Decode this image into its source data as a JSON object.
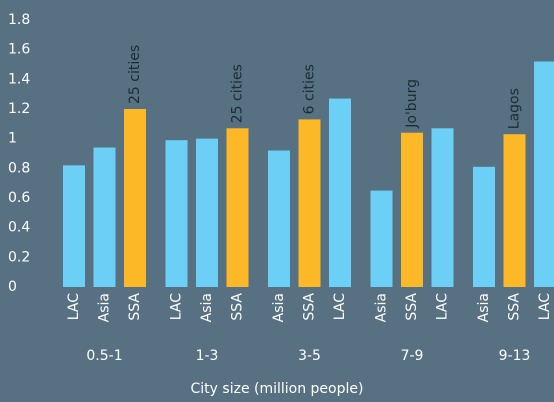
{
  "chart_data": {
    "type": "grouped-bar",
    "x_label": "City size (million people)",
    "ylim": [
      0,
      1.8
    ],
    "yticks": [
      0,
      0.2,
      0.4,
      0.6,
      0.8,
      1,
      1.2,
      1.4,
      1.6,
      1.8
    ],
    "groups": [
      {
        "name": "0.5-1",
        "bars": [
          {
            "name": "LAC",
            "value": 0.82,
            "color": "#6ccff6"
          },
          {
            "name": "Asia",
            "value": 0.94,
            "color": "#6ccff6"
          },
          {
            "name": "SSA",
            "value": 1.2,
            "color": "#fdb827",
            "annotation": "25 cities"
          }
        ]
      },
      {
        "name": "1-3",
        "bars": [
          {
            "name": "LAC",
            "value": 0.99,
            "color": "#6ccff6"
          },
          {
            "name": "Asia",
            "value": 1.0,
            "color": "#6ccff6"
          },
          {
            "name": "SSA",
            "value": 1.07,
            "color": "#fdb827",
            "annotation": "25 cities"
          }
        ]
      },
      {
        "name": "3-5",
        "bars": [
          {
            "name": "Asia",
            "value": 0.92,
            "color": "#6ccff6"
          },
          {
            "name": "SSA",
            "value": 1.13,
            "color": "#fdb827",
            "annotation": "6 cities"
          },
          {
            "name": "LAC",
            "value": 1.27,
            "color": "#6ccff6"
          }
        ]
      },
      {
        "name": "7-9",
        "bars": [
          {
            "name": "Asia",
            "value": 0.65,
            "color": "#6ccff6"
          },
          {
            "name": "SSA",
            "value": 1.04,
            "color": "#fdb827",
            "annotation": "Jo'burg"
          },
          {
            "name": "LAC",
            "value": 1.07,
            "color": "#6ccff6"
          }
        ]
      },
      {
        "name": "9-13",
        "bars": [
          {
            "name": "Asia",
            "value": 0.81,
            "color": "#6ccff6"
          },
          {
            "name": "SSA",
            "value": 1.03,
            "color": "#fdb827",
            "annotation": "Lagos"
          },
          {
            "name": "LAC",
            "value": 1.52,
            "color": "#6ccff6"
          }
        ]
      }
    ]
  }
}
